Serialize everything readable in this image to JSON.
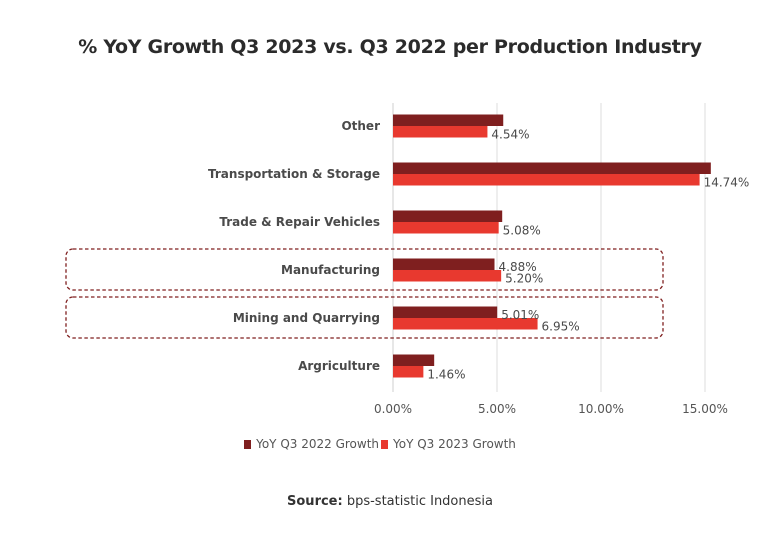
{
  "chart_data": {
    "type": "bar",
    "orientation": "horizontal",
    "title": "% YoY Growth Q3 2023 vs. Q3 2022 per Production Industry",
    "xlabel": "",
    "ylabel": "",
    "xlim": [
      0,
      16
    ],
    "x_ticks": [
      "0.00%",
      "5.00%",
      "10.00%",
      "15.00%"
    ],
    "x_tick_values": [
      0,
      5,
      10,
      15
    ],
    "grid": "vertical",
    "categories": [
      "Other",
      "Transportation & Storage",
      "Trade & Repair Vehicles",
      "Manufacturing",
      "Mining and Quarrying",
      "Argriculture"
    ],
    "series": [
      {
        "name": "YoY Q3 2022 Growth",
        "color": "#7f1f1f",
        "values": [
          5.3,
          15.28,
          5.25,
          4.88,
          5.01,
          1.98
        ],
        "labels": [
          "",
          "",
          "",
          "4.88%",
          "5.01%",
          ""
        ]
      },
      {
        "name": "YoY Q3 2023 Growth",
        "color": "#e8392f",
        "values": [
          4.54,
          14.74,
          5.08,
          5.2,
          6.95,
          1.46
        ],
        "labels": [
          "4.54%",
          "14.74%",
          "5.08%",
          "5.20%",
          "6.95%",
          "1.46%"
        ]
      }
    ],
    "highlighted_categories": [
      "Manufacturing",
      "Mining and Quarrying"
    ],
    "highlight_color": "#7f1f1f",
    "legend_position": "bottom"
  },
  "source": {
    "label": "Source:",
    "text": " bps-statistic Indonesia"
  }
}
